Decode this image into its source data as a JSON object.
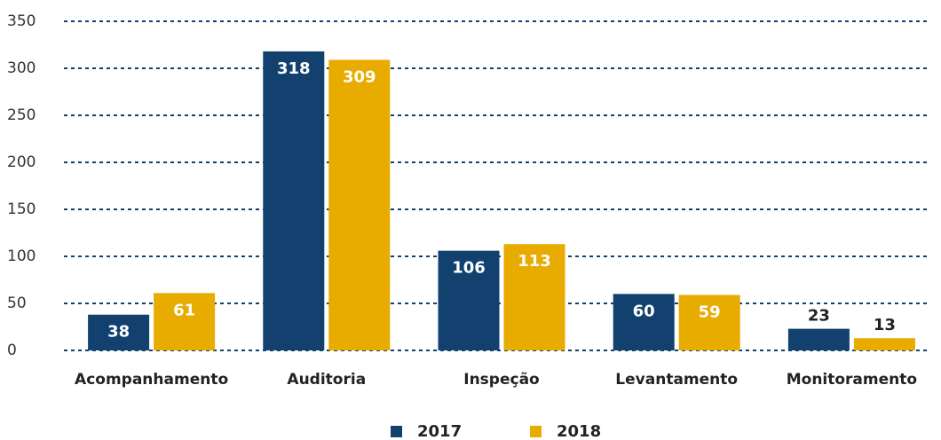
{
  "chart_data": {
    "type": "bar",
    "categories": [
      "Acompanhamento",
      "Auditoria",
      "Inspeção",
      "Levantamento",
      "Monitoramento"
    ],
    "series": [
      {
        "name": "2017",
        "color": "#12416f",
        "values": [
          38,
          318,
          106,
          60,
          23
        ]
      },
      {
        "name": "2018",
        "color": "#e8ab00",
        "values": [
          61,
          309,
          113,
          59,
          13
        ]
      }
    ],
    "ylim": [
      0,
      350
    ],
    "yticks": [
      0,
      50,
      100,
      150,
      200,
      250,
      300,
      350
    ],
    "grid": true,
    "legend": "bottom"
  }
}
